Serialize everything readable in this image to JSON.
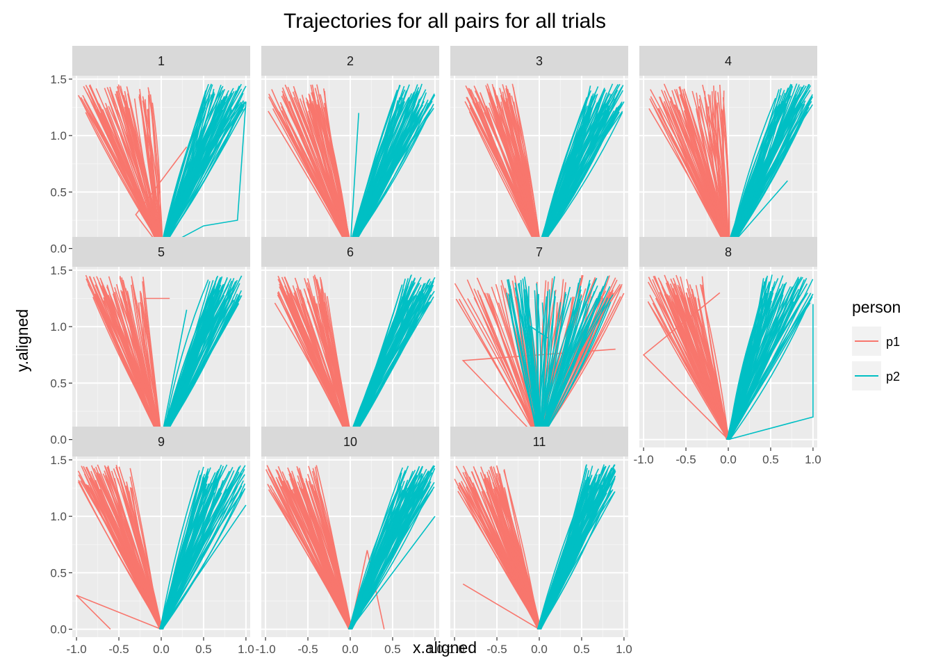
{
  "chart_data": {
    "type": "line",
    "title": "Trajectories for all pairs for all trials",
    "xlabel": "x.aligned",
    "ylabel": "y.aligned",
    "xlim": [
      -1.05,
      1.05
    ],
    "ylim": [
      -0.07,
      1.53
    ],
    "x_ticks": [
      -1.0,
      -0.5,
      0.0,
      0.5,
      1.0
    ],
    "x_tick_labels": [
      "-1.0",
      "-0.5",
      "0.0",
      "0.5",
      "1.0"
    ],
    "y_ticks": [
      0.0,
      0.5,
      1.0,
      1.5
    ],
    "y_tick_labels": [
      "0.0",
      "0.5",
      "1.0",
      "1.5"
    ],
    "grid": true,
    "facet_layout": {
      "ncol": 4,
      "nrow": 3
    },
    "legend": {
      "title": "person",
      "position": "right",
      "entries": [
        {
          "name": "p1",
          "color": "#F8766D"
        },
        {
          "name": "p2",
          "color": "#00BFC4"
        }
      ]
    },
    "series_colors": {
      "p1": "#F8766D",
      "p2": "#00BFC4"
    },
    "panels": [
      {
        "label": "1",
        "p1": {
          "x_top": [
            -1.0,
            -0.1
          ],
          "extra": [
            [
              0.0,
              0.0
            ],
            [
              -0.3,
              0.3
            ],
            [
              0.3,
              0.9
            ]
          ]
        },
        "p2": {
          "x_top": [
            0.5,
            1.0
          ],
          "extra": [
            [
              0.0,
              0.0
            ],
            [
              0.5,
              0.2
            ],
            [
              0.9,
              0.25
            ],
            [
              1.0,
              1.3
            ]
          ]
        }
      },
      {
        "label": "2",
        "p1": {
          "x_top": [
            -0.97,
            -0.3
          ],
          "extra": [
            [
              0.0,
              0.0
            ],
            [
              -0.4,
              0.8
            ]
          ]
        },
        "p2": {
          "x_top": [
            0.55,
            1.0
          ],
          "extra": [
            [
              0.0,
              0.0
            ],
            [
              0.1,
              1.2
            ]
          ]
        }
      },
      {
        "label": "3",
        "p1": {
          "x_top": [
            -0.88,
            -0.3
          ],
          "extra": [
            [
              0.0,
              0.0
            ],
            [
              -0.3,
              1.3
            ]
          ]
        },
        "p2": {
          "x_top": [
            0.55,
            1.0
          ],
          "extra": [
            [
              0.0,
              0.0
            ],
            [
              1.0,
              1.3
            ]
          ]
        }
      },
      {
        "label": "4",
        "p1": {
          "x_top": [
            -0.95,
            -0.05
          ],
          "extra": [
            [
              0.0,
              0.0
            ],
            [
              -0.1,
              1.45
            ]
          ]
        },
        "p2": {
          "x_top": [
            0.55,
            1.0
          ],
          "extra": [
            [
              0.0,
              0.0
            ],
            [
              0.7,
              0.6
            ]
          ]
        }
      },
      {
        "label": "5",
        "p1": {
          "x_top": [
            -0.9,
            -0.2
          ],
          "extra": [
            [
              0.0,
              0.0
            ],
            [
              -0.2,
              1.25
            ],
            [
              0.1,
              1.25
            ]
          ]
        },
        "p2": {
          "x_top": [
            0.55,
            0.95
          ],
          "extra": [
            [
              0.0,
              0.0
            ],
            [
              0.3,
              1.15
            ]
          ]
        }
      },
      {
        "label": "6",
        "p1": {
          "x_top": [
            -0.9,
            -0.25
          ],
          "extra": [
            [
              0.0,
              0.0
            ],
            [
              -0.3,
              1.3
            ]
          ]
        },
        "p2": {
          "x_top": [
            0.6,
            1.0
          ],
          "extra": [
            [
              0.0,
              0.0
            ],
            [
              -0.1,
              0.1
            ]
          ]
        }
      },
      {
        "label": "7",
        "p1": {
          "x_top": [
            -1.0,
            1.0
          ],
          "extra": [
            [
              0.0,
              0.0
            ],
            [
              -0.9,
              0.7
            ],
            [
              0.9,
              0.8
            ]
          ]
        },
        "p2": {
          "x_top": [
            -0.4,
            0.9
          ],
          "extra": [
            [
              0.0,
              0.0
            ],
            [
              -0.1,
              1.0
            ],
            [
              0.1,
              0.9
            ]
          ]
        }
      },
      {
        "label": "8",
        "p1": {
          "x_top": [
            -0.95,
            -0.3
          ],
          "extra": [
            [
              0.0,
              0.0
            ],
            [
              -1.0,
              0.75
            ],
            [
              -0.1,
              1.3
            ]
          ]
        },
        "p2": {
          "x_top": [
            0.4,
            1.0
          ],
          "extra": [
            [
              0.0,
              0.0
            ],
            [
              1.0,
              0.2
            ],
            [
              1.0,
              1.2
            ]
          ]
        }
      },
      {
        "label": "9",
        "p1": {
          "x_top": [
            -1.0,
            -0.35
          ],
          "extra": [
            [
              0.0,
              0.0
            ],
            [
              -1.0,
              0.3
            ],
            [
              -0.6,
              0.0
            ]
          ]
        },
        "p2": {
          "x_top": [
            0.45,
            1.0
          ],
          "extra": [
            [
              0.0,
              0.0
            ],
            [
              1.0,
              1.1
            ]
          ]
        }
      },
      {
        "label": "10",
        "p1": {
          "x_top": [
            -1.0,
            -0.4
          ],
          "extra": [
            [
              0.0,
              0.0
            ],
            [
              0.2,
              0.7
            ],
            [
              0.4,
              0.0
            ]
          ]
        },
        "p2": {
          "x_top": [
            0.6,
            1.0
          ],
          "extra": [
            [
              0.0,
              0.0
            ],
            [
              1.0,
              1.0
            ]
          ]
        }
      },
      {
        "label": "11",
        "p1": {
          "x_top": [
            -1.0,
            -0.4
          ],
          "extra": [
            [
              0.0,
              0.0
            ],
            [
              -0.9,
              0.4
            ]
          ]
        },
        "p2": {
          "x_top": [
            0.55,
            0.9
          ],
          "extra": [
            [
              0.0,
              0.0
            ],
            [
              0.9,
              1.4
            ]
          ]
        }
      }
    ]
  }
}
